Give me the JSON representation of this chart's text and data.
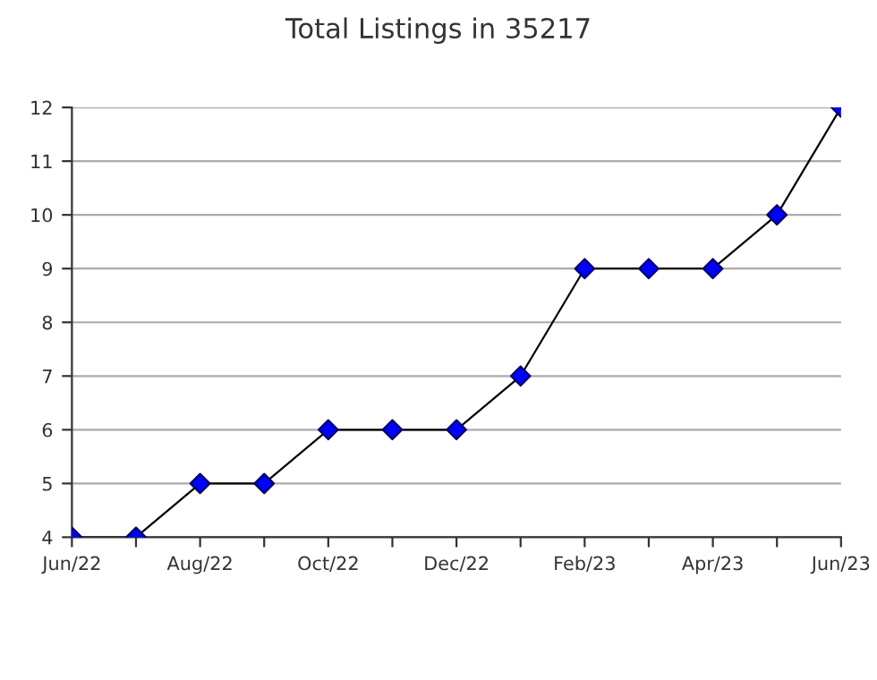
{
  "chart_data": {
    "type": "line",
    "title": "Total Listings in 35217",
    "categories": [
      "Jun/22",
      null,
      "Aug/22",
      null,
      "Oct/22",
      null,
      "Dec/22",
      null,
      "Feb/23",
      null,
      "Apr/23",
      null,
      "Jun/23"
    ],
    "series": [
      {
        "color": "#0000ff",
        "values": [
          4,
          4,
          5,
          5,
          6,
          6,
          6,
          7,
          9,
          9,
          9,
          10,
          12
        ]
      }
    ],
    "ylim": [
      4,
      12
    ],
    "yticks": [
      4,
      5,
      6,
      7,
      8,
      9,
      10,
      11,
      12
    ],
    "grid": "y",
    "marker": "diamond",
    "line_style": "solid",
    "legend": false
  }
}
